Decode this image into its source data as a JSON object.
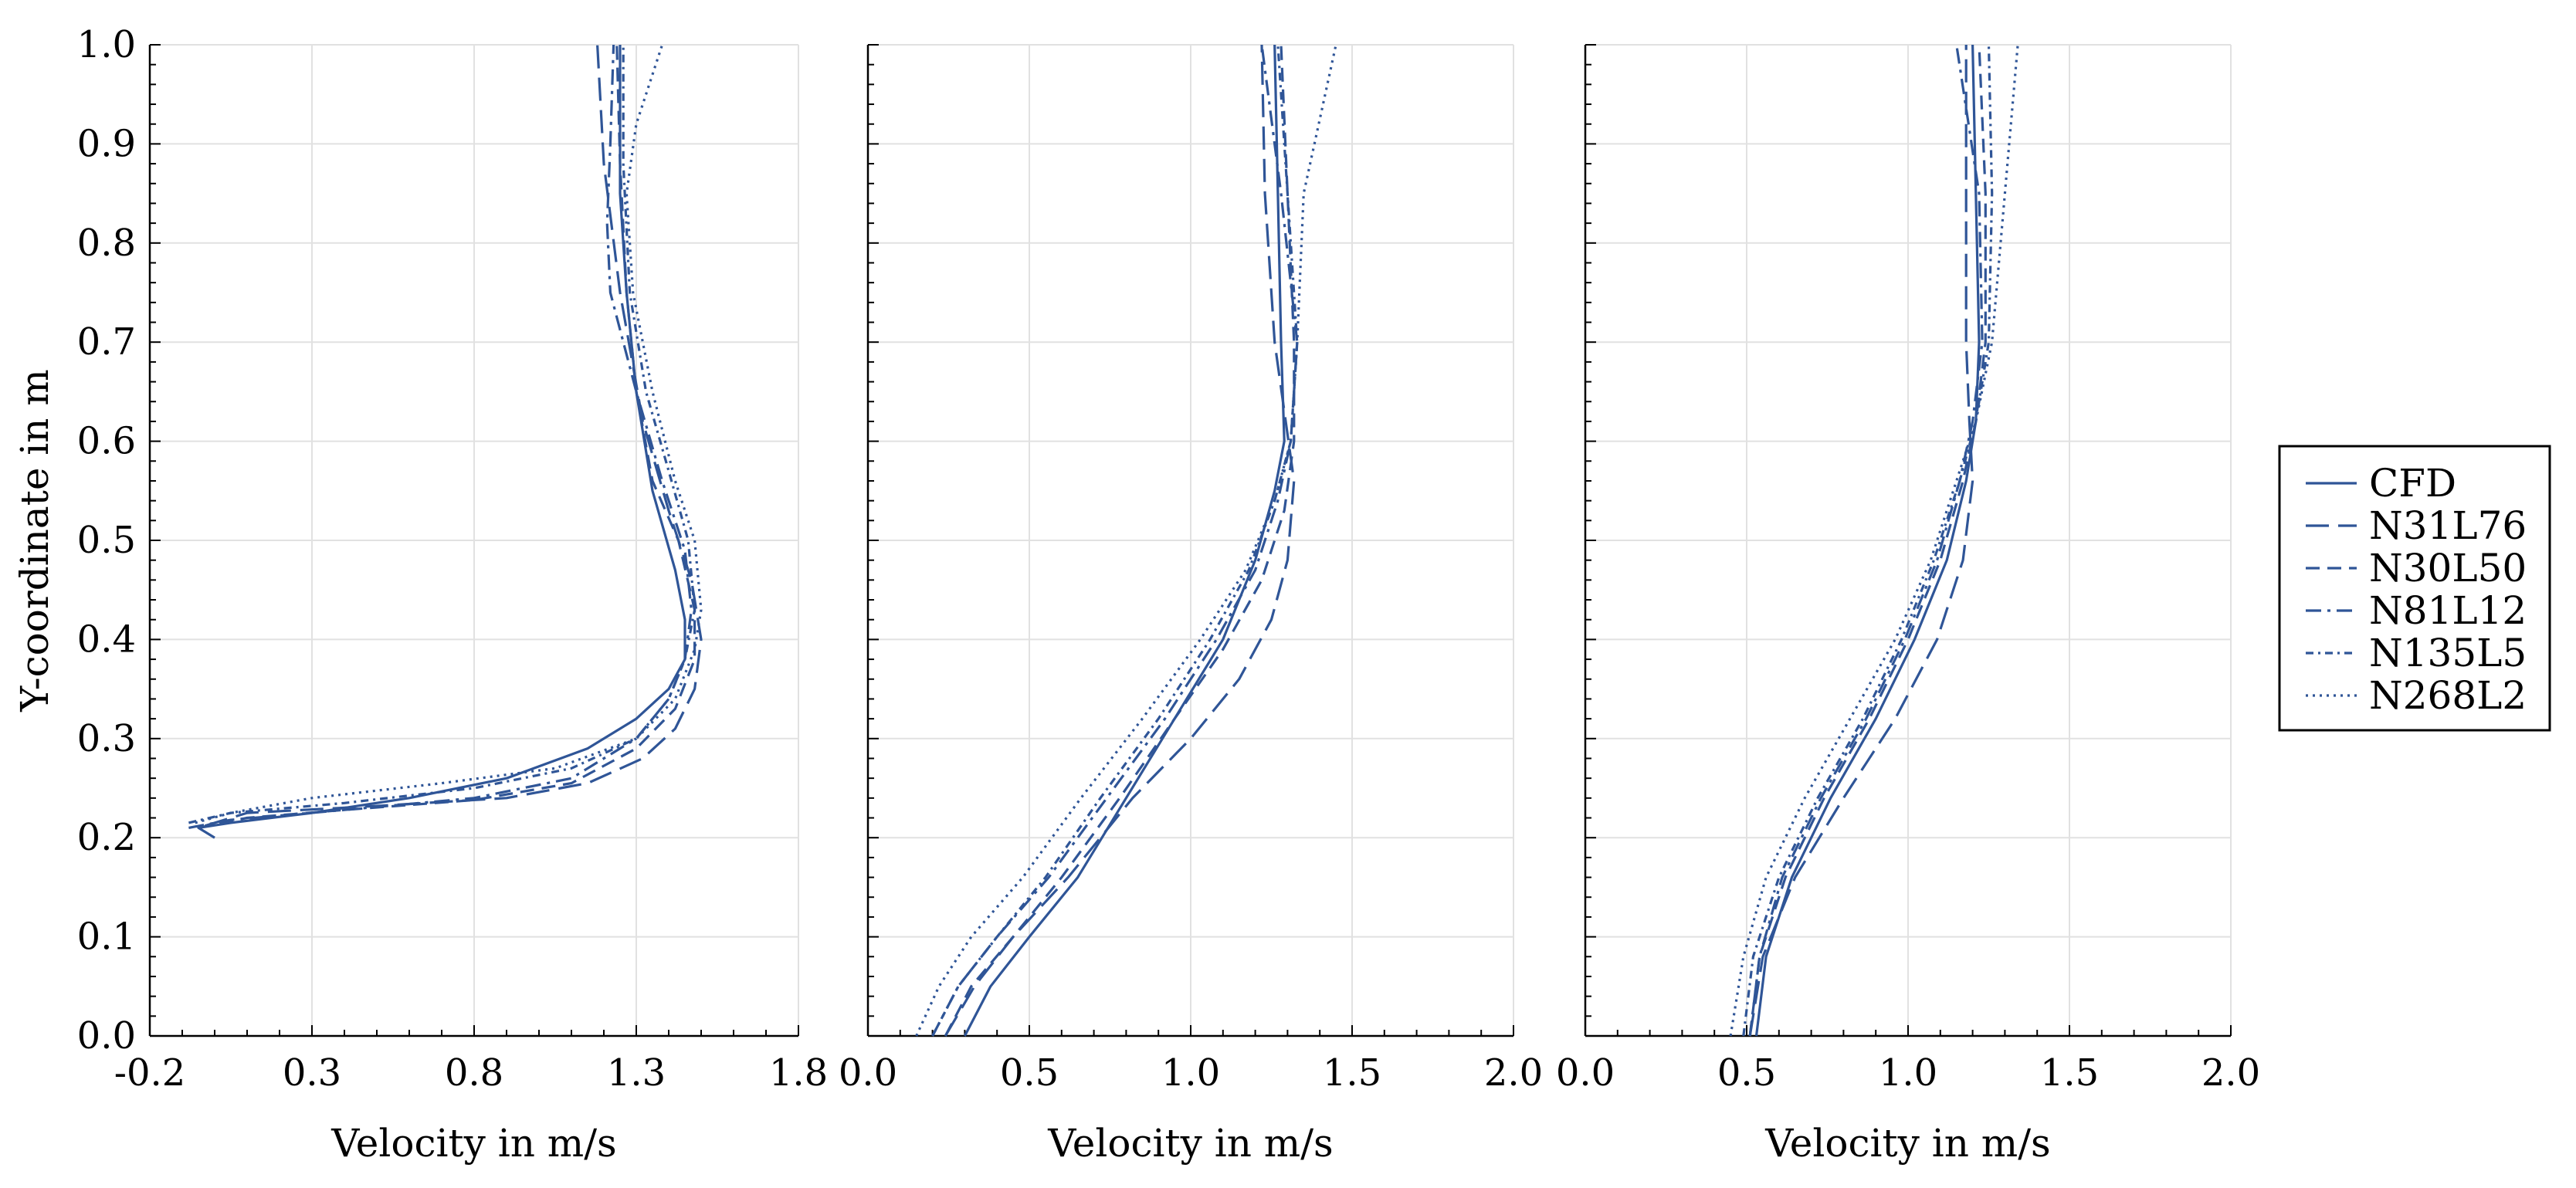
{
  "chart_data": [
    {
      "type": "line",
      "xlabel": "Velocity in m/s",
      "ylabel": "Y-coordinate in m",
      "xlim": [
        -0.2,
        1.8
      ],
      "ylim": [
        0.0,
        1.0
      ],
      "xticks": [
        "-0.2",
        "0.3",
        "0.8",
        "1.3",
        "1.8"
      ],
      "yticks": [
        "0.0",
        "0.1",
        "0.2",
        "0.3",
        "0.4",
        "0.5",
        "0.6",
        "0.7",
        "0.8",
        "0.9",
        "1.0"
      ],
      "grid": true,
      "series": [
        {
          "name": "CFD",
          "dash": "solid",
          "x": [
            0.0,
            -0.05,
            0.05,
            0.3,
            0.6,
            0.9,
            1.15,
            1.3,
            1.4,
            1.45,
            1.45,
            1.42,
            1.35,
            1.3,
            1.27,
            1.25,
            1.25
          ],
          "y": [
            0.2,
            0.21,
            0.215,
            0.225,
            0.24,
            0.26,
            0.29,
            0.32,
            0.35,
            0.38,
            0.42,
            0.47,
            0.55,
            0.65,
            0.75,
            0.85,
            1.0
          ]
        },
        {
          "name": "N31L76",
          "dash": "longdash",
          "x": [
            -0.03,
            0.1,
            0.5,
            0.9,
            1.15,
            1.32,
            1.42,
            1.48,
            1.5,
            1.47,
            1.4,
            1.32,
            1.25,
            1.2,
            1.18
          ],
          "y": [
            0.212,
            0.225,
            0.232,
            0.24,
            0.255,
            0.28,
            0.31,
            0.35,
            0.4,
            0.46,
            0.53,
            0.62,
            0.75,
            0.88,
            1.0
          ]
        },
        {
          "name": "N30L50",
          "dash": "dash",
          "x": [
            -0.05,
            0.1,
            0.4,
            0.8,
            1.1,
            1.3,
            1.42,
            1.48,
            1.48,
            1.43,
            1.35,
            1.3,
            1.27,
            1.25,
            1.24
          ],
          "y": [
            0.21,
            0.22,
            0.228,
            0.238,
            0.255,
            0.29,
            0.33,
            0.38,
            0.43,
            0.5,
            0.56,
            0.65,
            0.75,
            0.88,
            1.0
          ]
        },
        {
          "name": "N81L12",
          "dash": "dashdot",
          "x": [
            -0.08,
            0.05,
            0.4,
            0.8,
            1.1,
            1.3,
            1.4,
            1.45,
            1.47,
            1.45,
            1.38,
            1.3,
            1.22,
            1.21,
            1.22,
            1.23
          ],
          "y": [
            0.21,
            0.218,
            0.228,
            0.24,
            0.26,
            0.3,
            0.34,
            0.38,
            0.43,
            0.49,
            0.56,
            0.65,
            0.75,
            0.82,
            0.9,
            1.0
          ]
        },
        {
          "name": "N135L5",
          "dash": "dot-dash-fine",
          "x": [
            -0.08,
            0.05,
            0.4,
            0.8,
            1.1,
            1.3,
            1.4,
            1.45,
            1.48,
            1.46,
            1.4,
            1.33,
            1.28,
            1.26,
            1.26
          ],
          "y": [
            0.215,
            0.225,
            0.235,
            0.25,
            0.27,
            0.3,
            0.34,
            0.38,
            0.43,
            0.5,
            0.57,
            0.65,
            0.75,
            0.88,
            1.0
          ]
        },
        {
          "name": "N268L2",
          "dash": "dotted",
          "x": [
            -0.06,
            0.05,
            0.3,
            0.7,
            1.05,
            1.3,
            1.42,
            1.48,
            1.5,
            1.48,
            1.42,
            1.35,
            1.29,
            1.27,
            1.3,
            1.38
          ],
          "y": [
            0.215,
            0.225,
            0.24,
            0.255,
            0.27,
            0.3,
            0.34,
            0.39,
            0.43,
            0.5,
            0.56,
            0.65,
            0.75,
            0.85,
            0.92,
            1.0
          ]
        }
      ]
    },
    {
      "type": "line",
      "xlabel": "Velocity in m/s",
      "ylabel": "",
      "xlim": [
        0.0,
        2.0
      ],
      "ylim": [
        0.0,
        1.0
      ],
      "xticks": [
        "0.0",
        "0.5",
        "1.0",
        "1.5",
        "2.0"
      ],
      "yticks": [],
      "grid": true,
      "series": [
        {
          "name": "CFD",
          "dash": "solid",
          "x": [
            0.3,
            0.38,
            0.5,
            0.65,
            0.8,
            0.95,
            1.1,
            1.2,
            1.26,
            1.29,
            1.28,
            1.27,
            1.26
          ],
          "y": [
            0.0,
            0.05,
            0.1,
            0.16,
            0.24,
            0.32,
            0.4,
            0.48,
            0.55,
            0.6,
            0.7,
            0.85,
            1.0
          ]
        },
        {
          "name": "N31L76",
          "dash": "longdash",
          "x": [
            0.24,
            0.33,
            0.45,
            0.62,
            0.82,
            1.0,
            1.15,
            1.25,
            1.3,
            1.32,
            1.26,
            1.23,
            1.22
          ],
          "y": [
            0.0,
            0.05,
            0.1,
            0.16,
            0.24,
            0.3,
            0.36,
            0.42,
            0.48,
            0.56,
            0.7,
            0.85,
            1.0
          ]
        },
        {
          "name": "N30L50",
          "dash": "dash",
          "x": [
            0.24,
            0.32,
            0.45,
            0.6,
            0.78,
            0.95,
            1.1,
            1.22,
            1.29,
            1.32,
            1.32,
            1.3,
            1.28
          ],
          "y": [
            0.0,
            0.05,
            0.1,
            0.16,
            0.24,
            0.32,
            0.39,
            0.46,
            0.53,
            0.6,
            0.7,
            0.85,
            1.0
          ]
        },
        {
          "name": "N81L12",
          "dash": "dashdot",
          "x": [
            0.2,
            0.28,
            0.4,
            0.56,
            0.74,
            0.92,
            1.08,
            1.2,
            1.27,
            1.31,
            1.33,
            1.28,
            1.22
          ],
          "y": [
            0.0,
            0.05,
            0.1,
            0.16,
            0.24,
            0.32,
            0.4,
            0.47,
            0.54,
            0.6,
            0.7,
            0.85,
            1.0
          ]
        },
        {
          "name": "N135L5",
          "dash": "dot-dash-fine",
          "x": [
            0.2,
            0.28,
            0.4,
            0.55,
            0.72,
            0.9,
            1.06,
            1.18,
            1.26,
            1.31,
            1.33,
            1.3,
            1.27
          ],
          "y": [
            0.0,
            0.05,
            0.1,
            0.16,
            0.24,
            0.32,
            0.4,
            0.47,
            0.54,
            0.6,
            0.7,
            0.85,
            1.0
          ]
        },
        {
          "name": "N268L2",
          "dash": "dotted",
          "x": [
            0.15,
            0.22,
            0.32,
            0.48,
            0.66,
            0.85,
            1.03,
            1.17,
            1.26,
            1.31,
            1.33,
            1.35,
            1.45
          ],
          "y": [
            0.0,
            0.05,
            0.1,
            0.16,
            0.24,
            0.32,
            0.4,
            0.47,
            0.54,
            0.6,
            0.7,
            0.85,
            1.0
          ]
        }
      ]
    },
    {
      "type": "line",
      "xlabel": "Velocity in m/s",
      "ylabel": "",
      "xlim": [
        0.0,
        2.0
      ],
      "ylim": [
        0.0,
        1.0
      ],
      "xticks": [
        "0.0",
        "0.5",
        "1.0",
        "1.5",
        "2.0"
      ],
      "yticks": [],
      "grid": true,
      "series": [
        {
          "name": "CFD",
          "dash": "solid",
          "x": [
            0.53,
            0.56,
            0.64,
            0.76,
            0.9,
            1.02,
            1.12,
            1.18,
            1.21,
            1.22,
            1.21,
            1.2
          ],
          "y": [
            0.0,
            0.08,
            0.16,
            0.24,
            0.32,
            0.4,
            0.48,
            0.56,
            0.62,
            0.7,
            0.85,
            1.0
          ]
        },
        {
          "name": "N31L76",
          "dash": "longdash",
          "x": [
            0.51,
            0.55,
            0.65,
            0.8,
            0.96,
            1.09,
            1.17,
            1.2,
            1.19,
            1.18,
            1.18,
            1.18
          ],
          "y": [
            0.0,
            0.08,
            0.16,
            0.24,
            0.32,
            0.4,
            0.48,
            0.56,
            0.62,
            0.7,
            0.85,
            1.0
          ]
        },
        {
          "name": "N30L50",
          "dash": "dash",
          "x": [
            0.51,
            0.54,
            0.62,
            0.74,
            0.88,
            1.0,
            1.1,
            1.17,
            1.21,
            1.24,
            1.24,
            1.22
          ],
          "y": [
            0.0,
            0.08,
            0.16,
            0.24,
            0.32,
            0.4,
            0.48,
            0.56,
            0.62,
            0.7,
            0.85,
            1.0
          ]
        },
        {
          "name": "N81L12",
          "dash": "dashdot",
          "x": [
            0.51,
            0.54,
            0.61,
            0.73,
            0.87,
            0.99,
            1.09,
            1.16,
            1.2,
            1.23,
            1.22,
            1.15
          ],
          "y": [
            0.0,
            0.08,
            0.16,
            0.24,
            0.32,
            0.4,
            0.48,
            0.56,
            0.62,
            0.7,
            0.85,
            1.0
          ]
        },
        {
          "name": "N135L5",
          "dash": "dot-dash-fine",
          "x": [
            0.49,
            0.52,
            0.6,
            0.72,
            0.86,
            0.98,
            1.08,
            1.16,
            1.21,
            1.25,
            1.26,
            1.25
          ],
          "y": [
            0.0,
            0.08,
            0.16,
            0.24,
            0.32,
            0.4,
            0.48,
            0.56,
            0.62,
            0.7,
            0.85,
            1.0
          ]
        },
        {
          "name": "N268L2",
          "dash": "dotted",
          "x": [
            0.45,
            0.49,
            0.56,
            0.68,
            0.82,
            0.96,
            1.07,
            1.15,
            1.21,
            1.26,
            1.3,
            1.34
          ],
          "y": [
            0.0,
            0.08,
            0.16,
            0.24,
            0.32,
            0.4,
            0.48,
            0.56,
            0.62,
            0.7,
            0.85,
            1.0
          ]
        }
      ]
    }
  ],
  "legend": {
    "placement": "right",
    "entries": [
      "CFD",
      "N31L76",
      "N30L50",
      "N81L12",
      "N135L5",
      "N268L2"
    ]
  },
  "colors": {
    "line": "#2f5597",
    "grid": "#e1e1e1",
    "axis": "#000000"
  }
}
